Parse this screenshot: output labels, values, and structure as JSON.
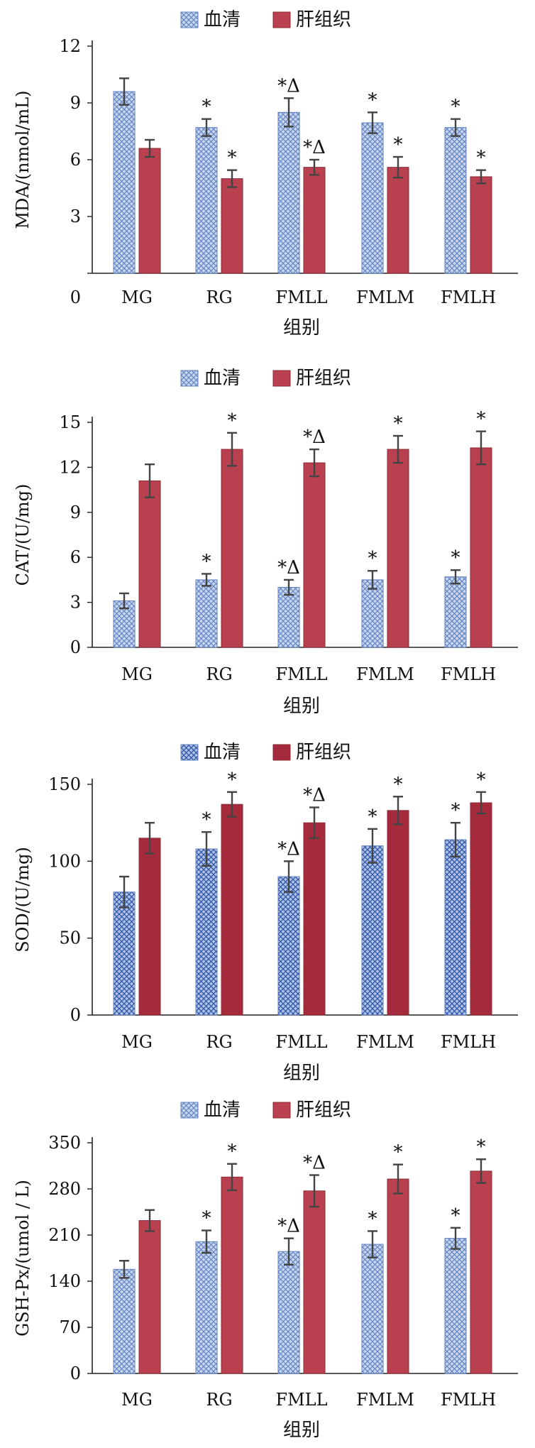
{
  "colors": {
    "serum": "#9db6e0",
    "serum_edge": "#5e7fbf",
    "liver": "#b8404f",
    "liver_edge": "#8e2a37",
    "axis": "#222222",
    "error": "#444444"
  },
  "chart_data": [
    {
      "type": "bar",
      "categories": [
        "MG",
        "RG",
        "FMLL",
        "FMLM",
        "FMLH"
      ],
      "xlabel": "组别",
      "ylabel": "MDA/(nmol/mL)",
      "ylim": [
        0,
        12
      ],
      "yticks": [
        "0",
        "3",
        "6",
        "9",
        "12"
      ],
      "legend": [
        "血清",
        "肝组织"
      ],
      "series": [
        {
          "name": "血清",
          "values": [
            9.6,
            7.7,
            8.5,
            7.95,
            7.7
          ],
          "errors": [
            0.7,
            0.45,
            0.75,
            0.55,
            0.45
          ],
          "marks": [
            "",
            "*",
            "*Δ",
            "*",
            "*"
          ]
        },
        {
          "name": "肝组织",
          "values": [
            6.6,
            5.0,
            5.6,
            5.6,
            5.1
          ],
          "errors": [
            0.45,
            0.45,
            0.4,
            0.55,
            0.35
          ],
          "marks": [
            "",
            "*",
            "*Δ",
            "*",
            "*"
          ]
        }
      ]
    },
    {
      "type": "bar",
      "categories": [
        "MG",
        "RG",
        "FMLL",
        "FMLM",
        "FMLH"
      ],
      "xlabel": "组别",
      "ylabel": "CAT/(U/mg)",
      "ylim": [
        0,
        15
      ],
      "yticks": [
        "0",
        "3",
        "6",
        "9",
        "12",
        "15"
      ],
      "legend": [
        "血清",
        "肝组织"
      ],
      "series": [
        {
          "name": "血清",
          "values": [
            3.1,
            4.5,
            4.0,
            4.5,
            4.7
          ],
          "errors": [
            0.5,
            0.4,
            0.5,
            0.6,
            0.45
          ],
          "marks": [
            "",
            "*",
            "*Δ",
            "*",
            "*"
          ]
        },
        {
          "name": "肝组织",
          "values": [
            11.1,
            13.2,
            12.3,
            13.2,
            13.3
          ],
          "errors": [
            1.1,
            1.1,
            0.9,
            0.9,
            1.1
          ],
          "marks": [
            "",
            "*",
            "*Δ",
            "*",
            "*"
          ]
        }
      ]
    },
    {
      "type": "bar",
      "categories": [
        "MG",
        "RG",
        "FMLL",
        "FMLM",
        "FMLH"
      ],
      "xlabel": "组别",
      "ylabel": "SOD/(U/mg)",
      "ylim": [
        0,
        150
      ],
      "yticks": [
        "0",
        "50",
        "100",
        "150"
      ],
      "legend": [
        "血清",
        "肝组织"
      ],
      "series": [
        {
          "name": "血清",
          "values": [
            80,
            108,
            90,
            110,
            114
          ],
          "errors": [
            10,
            11,
            10,
            11,
            11
          ],
          "marks": [
            "",
            "*",
            "*Δ",
            "*",
            "*"
          ]
        },
        {
          "name": "肝组织",
          "values": [
            115,
            137,
            125,
            133,
            138
          ],
          "errors": [
            10,
            8,
            10,
            9,
            7
          ],
          "marks": [
            "",
            "*",
            "*Δ",
            "*",
            "*"
          ]
        }
      ]
    },
    {
      "type": "bar",
      "categories": [
        "MG",
        "RG",
        "FMLL",
        "FMLM",
        "FMLH"
      ],
      "xlabel": "组别",
      "ylabel": "GSH-Px/(umol / L)",
      "ylim": [
        0,
        350
      ],
      "yticks": [
        "0",
        "70",
        "140",
        "210",
        "280",
        "350"
      ],
      "legend": [
        "血清",
        "肝组织"
      ],
      "series": [
        {
          "name": "血清",
          "values": [
            158,
            200,
            185,
            196,
            205
          ],
          "errors": [
            13,
            17,
            20,
            20,
            16
          ],
          "marks": [
            "",
            "*",
            "*Δ",
            "*",
            "*"
          ]
        },
        {
          "name": "肝组织",
          "values": [
            232,
            298,
            277,
            295,
            307
          ],
          "errors": [
            16,
            20,
            24,
            22,
            18
          ],
          "marks": [
            "",
            "*",
            "*Δ",
            "*",
            "*"
          ]
        }
      ]
    }
  ]
}
